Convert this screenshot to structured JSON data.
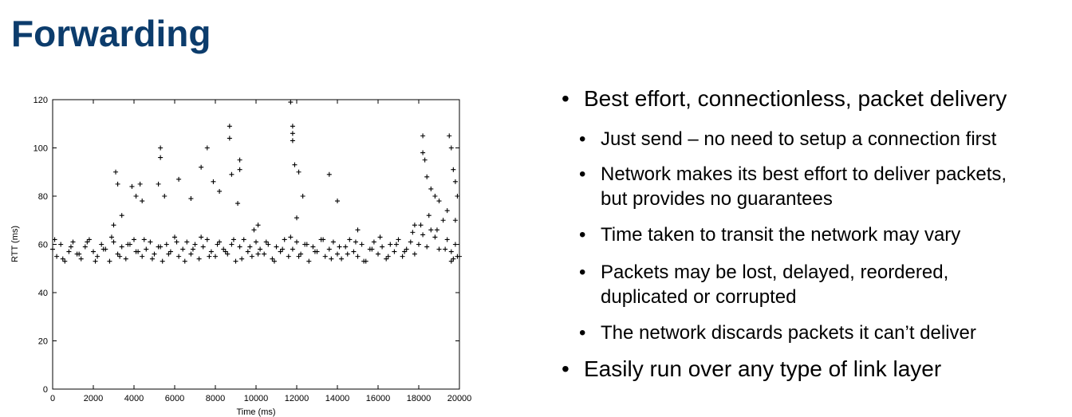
{
  "title": "Forwarding",
  "chart_data": {
    "type": "scatter",
    "xlabel": "Time (ms)",
    "ylabel": "RTT (ms)",
    "marker": "+",
    "color": "#000000",
    "xlim": [
      0,
      20000
    ],
    "ylim": [
      0,
      120
    ],
    "xticks": [
      0,
      2000,
      4000,
      6000,
      8000,
      10000,
      12000,
      14000,
      16000,
      18000,
      20000
    ],
    "yticks": [
      0,
      20,
      40,
      60,
      80,
      100,
      120
    ],
    "x": [
      0,
      200,
      400,
      600,
      800,
      1000,
      1200,
      1400,
      1600,
      1800,
      2000,
      2200,
      2400,
      2600,
      2800,
      3000,
      3200,
      3400,
      3600,
      3800,
      4000,
      4200,
      4400,
      4600,
      4800,
      5000,
      5200,
      5400,
      5600,
      5800,
      6000,
      6200,
      6400,
      6600,
      6800,
      7000,
      7200,
      7400,
      7600,
      7800,
      8000,
      8200,
      8400,
      8600,
      8800,
      9000,
      9200,
      9400,
      9600,
      9800,
      10000,
      10200,
      10400,
      10600,
      10800,
      11000,
      11200,
      11400,
      11600,
      11800,
      12000,
      12200,
      12400,
      12600,
      12800,
      13000,
      13200,
      13400,
      13600,
      13800,
      14000,
      14200,
      14400,
      14600,
      14800,
      15000,
      15200,
      15400,
      15600,
      15800,
      16000,
      16200,
      16400,
      16600,
      16800,
      17000,
      17200,
      17400,
      17600,
      17800,
      18000,
      18200,
      18400,
      18600,
      18800,
      19000,
      19200,
      19400,
      19600,
      19800,
      20000,
      100,
      500,
      900,
      1300,
      1700,
      2100,
      2500,
      2900,
      3300,
      3700,
      4100,
      4500,
      4900,
      5300,
      5700,
      6100,
      6500,
      6900,
      7300,
      7700,
      8100,
      8500,
      8900,
      9300,
      9700,
      10100,
      10500,
      10900,
      11300,
      11700,
      12100,
      12500,
      12900,
      13300,
      13700,
      14100,
      14500,
      14900,
      15300,
      15700,
      16100,
      16500,
      16900,
      17300,
      17700,
      18100,
      18500,
      18900,
      19300,
      19700,
      3000,
      3100,
      3200,
      3400,
      3900,
      4100,
      4300,
      4400,
      5300,
      5300,
      5200,
      5500,
      6200,
      6800,
      7300,
      7600,
      7900,
      8200,
      8700,
      8700,
      8800,
      9200,
      9200,
      9100,
      9900,
      10100,
      11700,
      11800,
      11800,
      11800,
      11900,
      12100,
      12300,
      12000,
      13600,
      14000,
      15000,
      17800,
      18200,
      18200,
      18300,
      18400,
      18600,
      18800,
      19000,
      19500,
      19600,
      19700,
      19800,
      19900,
      19600,
      19900,
      19800,
      19400
    ],
    "values": [
      58,
      55,
      60,
      53,
      57,
      61,
      56,
      54,
      59,
      62,
      57,
      55,
      60,
      58,
      53,
      61,
      56,
      59,
      54,
      60,
      62,
      57,
      55,
      58,
      61,
      56,
      59,
      53,
      60,
      57,
      63,
      55,
      58,
      61,
      56,
      60,
      54,
      59,
      62,
      57,
      55,
      61,
      58,
      56,
      60,
      53,
      59,
      62,
      57,
      55,
      61,
      58,
      56,
      60,
      54,
      59,
      57,
      62,
      55,
      58,
      61,
      56,
      60,
      53,
      59,
      57,
      62,
      55,
      58,
      61,
      56,
      54,
      59,
      62,
      57,
      55,
      60,
      53,
      58,
      61,
      56,
      59,
      54,
      60,
      57,
      62,
      55,
      58,
      61,
      56,
      60,
      64,
      59,
      66,
      63,
      58,
      70,
      62,
      57,
      60,
      55,
      62,
      54,
      59,
      56,
      61,
      53,
      58,
      63,
      55,
      60,
      57,
      62,
      54,
      59,
      56,
      61,
      53,
      58,
      63,
      55,
      60,
      57,
      62,
      54,
      59,
      56,
      61,
      53,
      58,
      63,
      55,
      60,
      57,
      62,
      54,
      59,
      56,
      61,
      53,
      58,
      63,
      55,
      60,
      57,
      65,
      68,
      72,
      66,
      58,
      54,
      68,
      90,
      85,
      72,
      84,
      80,
      85,
      78,
      100,
      96,
      85,
      80,
      87,
      79,
      92,
      100,
      86,
      82,
      109,
      104,
      89,
      95,
      91,
      77,
      66,
      68,
      119,
      109,
      106,
      103,
      93,
      90,
      80,
      71,
      89,
      78,
      66,
      68,
      105,
      98,
      95,
      88,
      83,
      80,
      78,
      105,
      100,
      91,
      86,
      80,
      53,
      55,
      70,
      74
    ]
  },
  "bullets": [
    {
      "lines": [
        "Best effort, connectionless, packet delivery"
      ],
      "sub": [
        {
          "lines": [
            "Just send – no need to setup a connection first"
          ]
        },
        {
          "lines": [
            "Network makes its best effort to deliver packets,",
            "but provides no guarantees"
          ]
        },
        {
          "lines": [
            "Time taken to transit the network may vary"
          ]
        },
        {
          "lines": [
            "Packets may be lost, delayed, reordered,",
            "duplicated or corrupted"
          ]
        },
        {
          "lines": [
            "The network discards packets it can’t deliver"
          ]
        }
      ]
    },
    {
      "lines": [
        "Easily run over any type of link layer"
      ]
    }
  ]
}
